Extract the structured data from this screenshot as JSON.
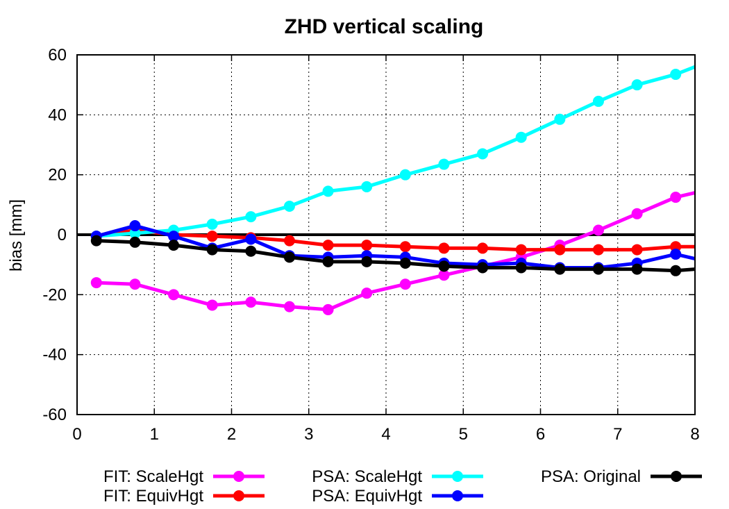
{
  "chart_data": {
    "type": "line",
    "title": "ZHD vertical scaling",
    "xlabel": "",
    "ylabel": "bias [mm]",
    "xlim": [
      0,
      8
    ],
    "ylim": [
      -60,
      60
    ],
    "xticks": [
      0,
      1,
      2,
      3,
      4,
      5,
      6,
      7,
      8
    ],
    "yticks": [
      -60,
      -40,
      -20,
      0,
      20,
      40,
      60
    ],
    "grid": true,
    "zero_line": true,
    "legend_position": "bottom",
    "x": [
      0.25,
      0.75,
      1.25,
      1.75,
      2.25,
      2.75,
      3.25,
      3.75,
      4.25,
      4.75,
      5.25,
      5.75,
      6.25,
      6.75,
      7.25,
      7.75,
      8.0
    ],
    "series": [
      {
        "name": "FIT: ScaleHgt",
        "color": "#ff00ff",
        "values": [
          -16,
          -16.5,
          -20,
          -23.5,
          -22.5,
          -24,
          -25,
          -19.5,
          -16.5,
          -13.5,
          -10.5,
          -7.5,
          -3.5,
          1.5,
          7,
          12.5,
          14
        ]
      },
      {
        "name": "FIT: EquivHgt",
        "color": "#ff0000",
        "values": [
          -0.5,
          1.5,
          0,
          -0.5,
          -1,
          -2,
          -3.5,
          -3.5,
          -4,
          -4.5,
          -4.5,
          -5,
          -5,
          -5,
          -5,
          -4,
          -4
        ]
      },
      {
        "name": "PSA: ScaleHgt",
        "color": "#00ffff",
        "values": [
          -0.5,
          0.5,
          1.5,
          3.5,
          6,
          9.5,
          14.5,
          16,
          20,
          23.5,
          27,
          32.5,
          38.5,
          44.5,
          50,
          53.5,
          56
        ]
      },
      {
        "name": "PSA: EquivHgt",
        "color": "#0000ff",
        "values": [
          -0.5,
          3,
          -0.5,
          -4.5,
          -1.5,
          -7,
          -7.5,
          -7,
          -7.5,
          -9.5,
          -10,
          -9.5,
          -11,
          -11,
          -9.5,
          -6.5,
          -8
        ]
      },
      {
        "name": "PSA: Original",
        "color": "#000000",
        "values": [
          -2,
          -2.5,
          -3.5,
          -5,
          -5.5,
          -7.5,
          -9,
          -9,
          -9.5,
          -10.5,
          -11,
          -11,
          -11.5,
          -11.5,
          -11.5,
          -12,
          -11.5
        ]
      }
    ]
  }
}
